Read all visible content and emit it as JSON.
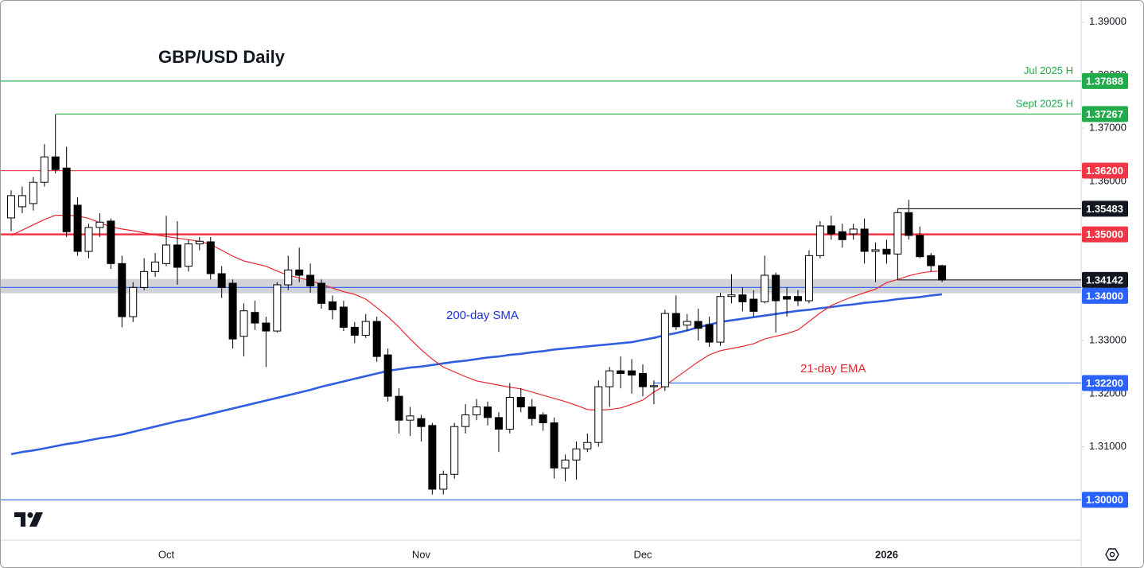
{
  "chart_data": {
    "type": "candlestick",
    "title": "GBP/USD Daily",
    "categories": [
      null,
      null,
      null,
      null,
      null,
      null,
      null,
      null,
      null,
      null,
      null,
      null,
      null,
      null,
      "Oct",
      null,
      null,
      null,
      null,
      null,
      null,
      null,
      null,
      null,
      null,
      null,
      null,
      null,
      null,
      null,
      null,
      null,
      null,
      null,
      null,
      null,
      null,
      "Nov",
      null,
      null,
      null,
      null,
      null,
      null,
      null,
      null,
      null,
      null,
      null,
      null,
      null,
      null,
      null,
      null,
      null,
      null,
      null,
      "Dec",
      null,
      null,
      null,
      null,
      null,
      null,
      null,
      null,
      null,
      null,
      null,
      null,
      null,
      null,
      null,
      null,
      null,
      null,
      null,
      null,
      null,
      "2026",
      null,
      null,
      null,
      null,
      null
    ],
    "open": [
      1.3531,
      1.3552,
      1.3558,
      1.3598,
      1.3646,
      1.3625,
      1.3555,
      1.3468,
      1.3513,
      1.3525,
      1.3445,
      1.3345,
      1.34,
      1.343,
      1.3445,
      1.348,
      1.344,
      1.3482,
      1.3486,
      1.3426,
      1.3408,
      1.3308,
      1.3353,
      1.3333,
      1.3318,
      1.3405,
      1.3433,
      1.3423,
      1.3408,
      1.3373,
      1.3363,
      1.3325,
      1.331,
      1.3336,
      1.3273,
      1.3195,
      1.315,
      1.3153,
      1.314,
      1.302,
      1.3048,
      1.3138,
      1.316,
      1.3175,
      1.3155,
      1.3133,
      1.3193,
      1.3175,
      1.316,
      1.3145,
      1.306,
      1.3075,
      1.3096,
      1.3108,
      1.3213,
      1.3243,
      1.3243,
      1.3238,
      1.3213,
      1.3213,
      1.3351,
      1.3329,
      1.3336,
      1.333,
      1.3297,
      1.3383,
      1.3386,
      1.3378,
      1.3373,
      1.3423,
      1.3383,
      1.3383,
      1.3375,
      1.346,
      1.3516,
      1.3505,
      1.3501,
      1.351,
      1.3468,
      1.3472,
      1.3463,
      1.3541,
      1.3498,
      1.346,
      1.3441
    ],
    "high": [
      1.3583,
      1.359,
      1.3608,
      1.367,
      1.3726,
      1.3665,
      1.357,
      1.352,
      1.354,
      1.353,
      1.346,
      1.341,
      1.3455,
      1.3465,
      1.3535,
      1.3525,
      1.349,
      1.3495,
      1.3495,
      1.344,
      1.3415,
      1.337,
      1.3375,
      1.3345,
      1.341,
      1.346,
      1.3475,
      1.3445,
      1.3415,
      1.3385,
      1.3375,
      1.3335,
      1.335,
      1.3345,
      1.3285,
      1.321,
      1.3175,
      1.316,
      1.3145,
      1.3055,
      1.3145,
      1.318,
      1.319,
      1.3185,
      1.3165,
      1.322,
      1.321,
      1.319,
      1.3165,
      1.3155,
      1.3085,
      1.311,
      1.3125,
      1.3225,
      1.325,
      1.327,
      1.3265,
      1.3255,
      1.3225,
      1.3358,
      1.3385,
      1.335,
      1.336,
      1.3345,
      1.339,
      1.3425,
      1.34,
      1.3395,
      1.346,
      1.3428,
      1.34,
      1.3395,
      1.347,
      1.3525,
      1.3535,
      1.352,
      1.352,
      1.353,
      1.3485,
      1.349,
      1.3548,
      1.3565,
      1.3515,
      1.3465,
      1.3443
    ],
    "low": [
      1.3506,
      1.354,
      1.3545,
      1.359,
      1.3615,
      1.3495,
      1.346,
      1.3455,
      1.3495,
      1.3435,
      1.3325,
      1.3335,
      1.3395,
      1.342,
      1.344,
      1.3405,
      1.343,
      1.347,
      1.3415,
      1.338,
      1.3285,
      1.327,
      1.332,
      1.325,
      1.3315,
      1.3395,
      1.341,
      1.339,
      1.336,
      1.334,
      1.3318,
      1.3295,
      1.3305,
      1.326,
      1.3185,
      1.3125,
      1.312,
      1.311,
      1.301,
      1.301,
      1.304,
      1.3125,
      1.315,
      1.314,
      1.309,
      1.3125,
      1.3165,
      1.314,
      1.313,
      1.304,
      1.3035,
      1.3038,
      1.309,
      1.31,
      1.3175,
      1.321,
      1.32,
      1.3195,
      1.318,
      1.3205,
      1.332,
      1.3318,
      1.33,
      1.3288,
      1.329,
      1.337,
      1.3355,
      1.3345,
      1.337,
      1.3315,
      1.3345,
      1.3365,
      1.337,
      1.3455,
      1.349,
      1.3475,
      1.349,
      1.3445,
      1.341,
      1.3445,
      1.3414,
      1.349,
      1.3455,
      1.343,
      1.341
    ],
    "close": [
      1.3573,
      1.3573,
      1.3598,
      1.3646,
      1.3622,
      1.3505,
      1.3468,
      1.3513,
      1.3523,
      1.3445,
      1.3345,
      1.34,
      1.343,
      1.3448,
      1.348,
      1.3438,
      1.3482,
      1.3487,
      1.3426,
      1.34,
      1.3303,
      1.3356,
      1.3333,
      1.3318,
      1.3405,
      1.3433,
      1.3423,
      1.3403,
      1.337,
      1.3358,
      1.3325,
      1.331,
      1.3336,
      1.327,
      1.3195,
      1.315,
      1.3158,
      1.3138,
      1.302,
      1.3048,
      1.3138,
      1.316,
      1.3175,
      1.3155,
      1.3133,
      1.3193,
      1.3175,
      1.3153,
      1.3145,
      1.306,
      1.3075,
      1.3096,
      1.3108,
      1.3213,
      1.3243,
      1.3238,
      1.3235,
      1.3213,
      1.3215,
      1.3351,
      1.3326,
      1.3336,
      1.3323,
      1.3297,
      1.3383,
      1.3386,
      1.3373,
      1.3355,
      1.3423,
      1.3375,
      1.3378,
      1.3375,
      1.346,
      1.3516,
      1.3501,
      1.349,
      1.351,
      1.3468,
      1.3471,
      1.3463,
      1.3541,
      1.3498,
      1.3458,
      1.3441,
      1.3414
    ],
    "lines": [
      {
        "name": "200-day SMA",
        "color": "#2f5fe0",
        "values": [
          1.3086,
          1.309,
          1.3093,
          1.3097,
          1.3101,
          1.3105,
          1.3108,
          1.3112,
          1.3116,
          1.3119,
          1.3123,
          1.3128,
          1.3133,
          1.3138,
          1.3143,
          1.3148,
          1.3152,
          1.3157,
          1.3162,
          1.3167,
          1.3172,
          1.3177,
          1.3182,
          1.3187,
          1.3192,
          1.3197,
          1.3202,
          1.3207,
          1.3213,
          1.3218,
          1.3223,
          1.3228,
          1.3233,
          1.3238,
          1.3243,
          1.3246,
          1.3249,
          1.3251,
          1.3254,
          1.3257,
          1.326,
          1.3262,
          1.3265,
          1.3268,
          1.327,
          1.3273,
          1.3275,
          1.3278,
          1.328,
          1.3283,
          1.3285,
          1.3287,
          1.3289,
          1.3291,
          1.3293,
          1.3295,
          1.3297,
          1.3301,
          1.3305,
          1.331,
          1.3314,
          1.3319,
          1.3325,
          1.333,
          1.3335,
          1.3338,
          1.3341,
          1.3344,
          1.3347,
          1.335,
          1.3353,
          1.3356,
          1.3358,
          1.3361,
          1.3363,
          1.3366,
          1.3368,
          1.3371,
          1.3373,
          1.3375,
          1.3378,
          1.338,
          1.3382,
          1.3385,
          1.3387
        ],
        "bold": true
      },
      {
        "name": "21-day EMA",
        "color": "#e8262f",
        "values": [
          1.3498,
          1.3508,
          1.3518,
          1.3528,
          1.3536,
          1.3536,
          1.3535,
          1.353,
          1.3522,
          1.3514,
          1.351,
          1.3507,
          1.3503,
          1.3499,
          1.3496,
          1.3493,
          1.349,
          1.3487,
          1.3481,
          1.347,
          1.3459,
          1.345,
          1.3445,
          1.344,
          1.3431,
          1.3423,
          1.3418,
          1.3413,
          1.3406,
          1.3399,
          1.3392,
          1.3387,
          1.3378,
          1.3362,
          1.3345,
          1.3325,
          1.3303,
          1.3283,
          1.3265,
          1.325,
          1.3241,
          1.3232,
          1.3224,
          1.322,
          1.3216,
          1.3212,
          1.3209,
          1.3203,
          1.3197,
          1.3191,
          1.3185,
          1.3178,
          1.317,
          1.3169,
          1.317,
          1.3173,
          1.318,
          1.3188,
          1.3203,
          1.3215,
          1.323,
          1.3245,
          1.326,
          1.3273,
          1.3281,
          1.3285,
          1.3289,
          1.3294,
          1.3303,
          1.3308,
          1.3313,
          1.332,
          1.3336,
          1.3352,
          1.3366,
          1.3375,
          1.3383,
          1.339,
          1.3397,
          1.3409,
          1.3415,
          1.3422,
          1.3427,
          1.343,
          1.3431
        ],
        "bold": false
      }
    ],
    "levels": [
      {
        "value": 1.37888,
        "label": "1.37888",
        "color": "#22ab4a",
        "text": "Jul 2025 H"
      },
      {
        "value": 1.37267,
        "label": "1.37267",
        "color": "#22ab4a",
        "text": "Sept 2025 H",
        "from": 4
      },
      {
        "value": 1.362,
        "label": "1.36200",
        "color": "#f23645"
      },
      {
        "value": 1.35483,
        "label": "1.35483",
        "color": "#131722",
        "from": 80
      },
      {
        "value": 1.35,
        "label": "1.35000",
        "color": "#f23645",
        "bold": true
      },
      {
        "value": 1.34142,
        "label": "1.34142",
        "color": "#131722",
        "from": 80
      },
      {
        "value": 1.34,
        "label": "1.34000",
        "color": "#2962ff"
      },
      {
        "value": 1.322,
        "label": "1.32200",
        "color": "#2962ff",
        "from": 58
      },
      {
        "value": 1.3,
        "label": "1.30000",
        "color": "#2962ff"
      }
    ],
    "band": [
      1.3389,
      1.3416
    ],
    "band_color": "#c9cbd1",
    "ylim": [
      1.2924,
      1.394
    ],
    "yticks": [
      {
        "value": 1.39,
        "label": "1.39000"
      },
      {
        "value": 1.38,
        "label": "1.38000"
      },
      {
        "value": 1.37,
        "label": "1.37000"
      },
      {
        "value": 1.36,
        "label": "1.36000"
      },
      {
        "value": 1.35,
        "label": "1.35000"
      },
      {
        "value": 1.34,
        "label": "1.34000"
      },
      {
        "value": 1.33,
        "label": "1.33000"
      },
      {
        "value": 1.32,
        "label": "1.32000"
      },
      {
        "value": 1.31,
        "label": "1.31000"
      },
      {
        "value": 1.3,
        "label": "1.30000"
      }
    ],
    "grid": false
  }
}
